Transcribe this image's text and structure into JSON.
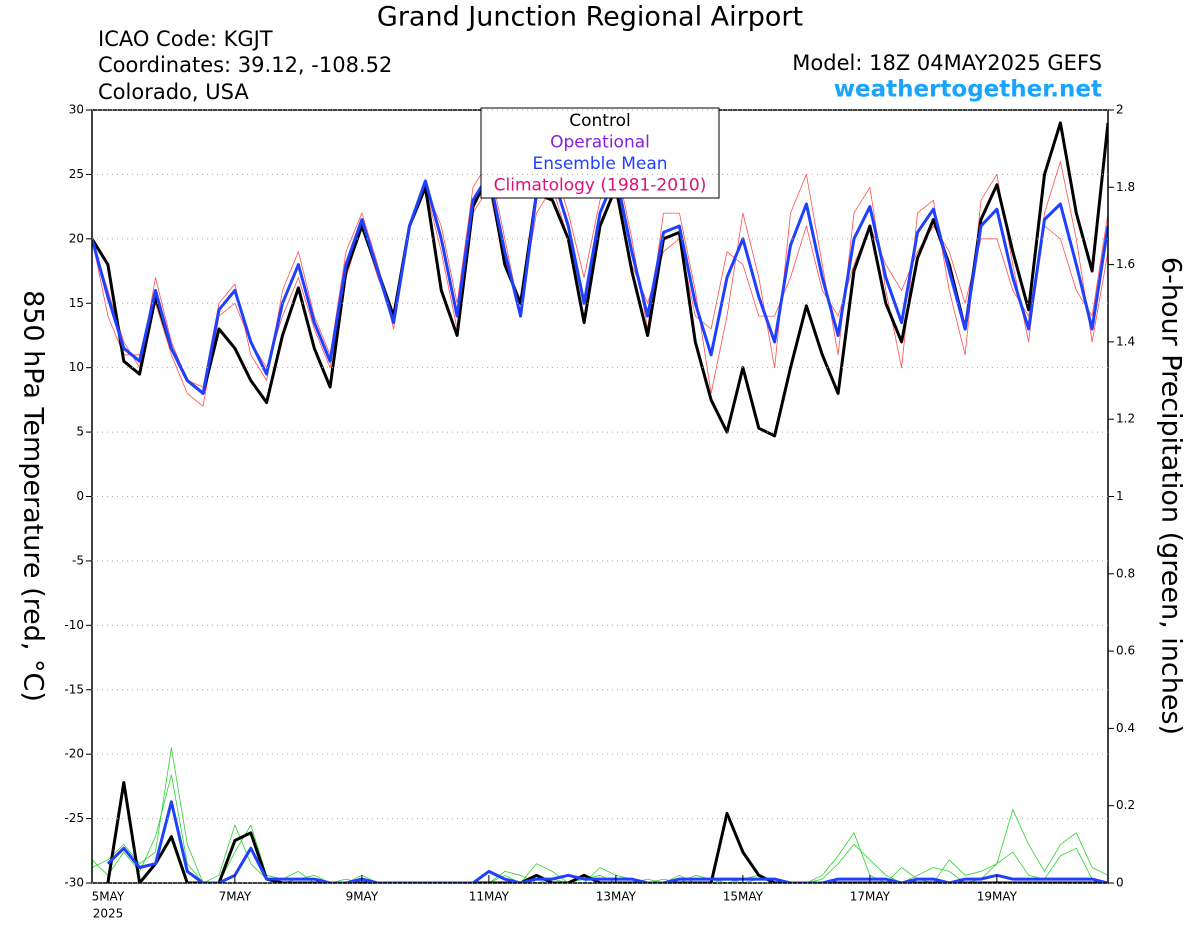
{
  "chart_data": {
    "type": "line",
    "title": "Grand Junction Regional Airport",
    "info": [
      "ICAO Code: KGJT",
      "Coordinates: 39.12, -108.52",
      "Colorado, USA"
    ],
    "model": "Model: 18Z 04MAY2025 GEFS",
    "site": "weathertogether.net",
    "ylabel": "850 hPa Temperature (red, °C)",
    "y2label": "6-hour Precipitation (green, inches)",
    "year": "2025",
    "legend": [
      {
        "name": "Control",
        "color": "#000000"
      },
      {
        "name": "Operational",
        "color": "#8a1ee0"
      },
      {
        "name": "Ensemble Mean",
        "color": "#2040ff"
      },
      {
        "name": "Climatology (1981-2010)",
        "color": "#e0107a"
      }
    ],
    "grid": true,
    "x": [
      0,
      6,
      12,
      18,
      24,
      30,
      36,
      42,
      48,
      54,
      60,
      66,
      72,
      78,
      84,
      90,
      96,
      102,
      108,
      114,
      120,
      126,
      132,
      138,
      144,
      150,
      156,
      162,
      168,
      174,
      180,
      186,
      192,
      198,
      204,
      210,
      216,
      222,
      228,
      234,
      240,
      246,
      252,
      258,
      264,
      270,
      276,
      282,
      288,
      294,
      300,
      306,
      312,
      318,
      324,
      330,
      336,
      342,
      348,
      354,
      360,
      366,
      372,
      378,
      384
    ],
    "xlim": [
      0,
      384
    ],
    "xticks": [
      {
        "value": 6,
        "label": "5MAY"
      },
      {
        "value": 54,
        "label": "7MAY"
      },
      {
        "value": 102,
        "label": "9MAY"
      },
      {
        "value": 150,
        "label": "11MAY"
      },
      {
        "value": 198,
        "label": "13MAY"
      },
      {
        "value": 246,
        "label": "15MAY"
      },
      {
        "value": 294,
        "label": "17MAY"
      },
      {
        "value": 342,
        "label": "19MAY"
      }
    ],
    "ylim": [
      -30,
      30
    ],
    "yticks": [
      -30,
      -25,
      -20,
      -15,
      -10,
      -5,
      0,
      5,
      10,
      15,
      20,
      25,
      30
    ],
    "y2lim": [
      0,
      2
    ],
    "y2ticks": [
      0,
      0.2,
      0.4,
      0.6,
      0.8,
      1,
      1.2,
      1.4,
      1.6,
      1.8,
      2
    ],
    "series": [
      {
        "color": "#ff5050",
        "width": 0.8,
        "values": [
          20,
          16,
          12,
          10,
          17,
          12,
          9,
          8.5,
          15,
          16.5,
          11,
          9,
          16,
          19,
          14,
          11,
          19,
          22,
          18,
          13,
          21,
          24,
          21,
          15,
          24,
          26,
          20,
          14,
          24,
          26,
          22,
          17,
          23,
          26,
          20,
          13,
          22,
          22,
          16,
          8,
          14,
          22,
          17,
          10,
          22,
          25,
          18,
          11,
          22,
          24,
          16,
          10,
          22,
          23,
          16,
          11,
          23,
          25,
          18,
          12,
          22,
          26,
          20,
          12,
          19
        ]
      },
      {
        "color": "#ff5050",
        "width": 0.8,
        "values": [
          20,
          14,
          11,
          11,
          15,
          11,
          8,
          7,
          14,
          15,
          12,
          10,
          14,
          17,
          13,
          10,
          17,
          21,
          17,
          14,
          21,
          24,
          19,
          13,
          22,
          24,
          18,
          15,
          22,
          24,
          20,
          14,
          21,
          24,
          18,
          15,
          19,
          20,
          14,
          13,
          19,
          18,
          14,
          14,
          17,
          21,
          16,
          14,
          18,
          21,
          18,
          16,
          19,
          21,
          19,
          15,
          20,
          20,
          16,
          14,
          21,
          20,
          16,
          14,
          22
        ]
      },
      {
        "color": "#30d030",
        "width": 0.8,
        "axis": "y2",
        "values": [
          0.04,
          0.06,
          0.1,
          0.05,
          0.08,
          0.35,
          0.1,
          0,
          0,
          0.08,
          0.15,
          0.02,
          0.01,
          0.03,
          0,
          0,
          0.01,
          0,
          0,
          0,
          0,
          0,
          0,
          0,
          0,
          0,
          0.03,
          0.02,
          0,
          0.01,
          0,
          0,
          0.04,
          0.02,
          0.01,
          0,
          0.01,
          0,
          0.02,
          0.01,
          0,
          0.01,
          0.02,
          0,
          0,
          0,
          0.01,
          0.05,
          0.1,
          0.06,
          0.02,
          0,
          0.02,
          0.04,
          0.03,
          0,
          0.01,
          0.05,
          0.19,
          0.1,
          0.03,
          0.1,
          0.13,
          0.04,
          0.02
        ]
      },
      {
        "color": "#30d030",
        "width": 0.8,
        "axis": "y2",
        "values": [
          0.06,
          0.02,
          0.08,
          0.03,
          0.12,
          0.28,
          0.05,
          0,
          0.02,
          0.15,
          0.05,
          0.01,
          0,
          0.01,
          0.02,
          0,
          0,
          0.02,
          0,
          0,
          0,
          0,
          0,
          0,
          0,
          0,
          0.02,
          0,
          0.05,
          0.03,
          0,
          0.01,
          0.02,
          0,
          0,
          0.01,
          0,
          0.02,
          0,
          0,
          0.01,
          0,
          0.01,
          0.01,
          0,
          0,
          0.02,
          0.07,
          0.13,
          0.02,
          0,
          0.04,
          0.01,
          0,
          0.06,
          0.02,
          0.03,
          0.05,
          0.08,
          0.02,
          0.01,
          0.07,
          0.09,
          0.01,
          0
        ]
      },
      {
        "color": "#000000",
        "width": 3,
        "axis": "y2",
        "values": [
          null,
          0,
          0.26,
          0,
          0.05,
          0.12,
          0,
          0,
          0,
          0.11,
          0.13,
          0.01,
          0,
          0,
          0,
          0,
          0,
          0,
          0,
          0,
          0,
          0,
          0,
          0,
          0,
          0,
          0,
          0,
          0.02,
          0,
          0,
          0.02,
          0,
          0,
          0,
          0,
          0,
          0,
          0,
          0,
          0.18,
          0.08,
          0.02,
          0,
          0,
          0,
          0,
          0,
          0,
          0,
          0,
          0,
          0,
          0,
          0,
          0,
          0,
          0,
          0,
          0,
          0,
          0,
          0,
          0,
          0
        ]
      },
      {
        "color": "#2040ff",
        "width": 3,
        "axis": "y2",
        "values": [
          null,
          0.05,
          0.09,
          0.04,
          0.05,
          0.21,
          0.03,
          0,
          0,
          0.02,
          0.09,
          0.01,
          0.01,
          0.01,
          0.01,
          0,
          0,
          0.01,
          0,
          0,
          0,
          0,
          0,
          0,
          0,
          0.03,
          0.01,
          0,
          0.01,
          0.01,
          0.02,
          0.01,
          0.01,
          0.01,
          0.01,
          0,
          0,
          0.01,
          0.01,
          0.01,
          0.01,
          0.01,
          0.01,
          0.01,
          0,
          0,
          0,
          0.01,
          0.01,
          0.01,
          0.01,
          0,
          0.01,
          0.01,
          0,
          0.01,
          0.01,
          0.02,
          0.01,
          0.01,
          0.01,
          0.01,
          0.01,
          0.01,
          0
        ]
      },
      {
        "color": "#000000",
        "width": 3,
        "values": [
          20,
          18,
          10.5,
          9.5,
          15.5,
          11.5,
          9,
          8,
          13,
          11.5,
          9,
          7.3,
          12.5,
          16.2,
          11.5,
          8.5,
          17.5,
          21,
          17.5,
          14,
          21,
          24,
          16,
          12.5,
          22.5,
          25,
          18,
          15,
          23.5,
          23,
          20,
          13.5,
          21,
          24,
          17.5,
          12.5,
          20,
          20.5,
          12,
          7.5,
          5,
          10,
          5.3,
          4.7,
          10,
          14.8,
          11,
          8,
          17.5,
          21,
          15,
          12,
          18.5,
          21.5,
          18,
          13,
          21.5,
          24.2,
          19,
          14.5,
          25,
          29,
          22,
          17.5,
          29
        ]
      },
      {
        "color": "#2040ff",
        "width": 3,
        "values": [
          20,
          15.5,
          11.5,
          10.5,
          16,
          11.5,
          9,
          8,
          14.5,
          16,
          12,
          9.5,
          15,
          18,
          13.5,
          10.5,
          18,
          21.5,
          17.5,
          13.5,
          21,
          24.5,
          20,
          14,
          23,
          25,
          19,
          14,
          23.5,
          25,
          21,
          15,
          22,
          25,
          19,
          14,
          20.5,
          21,
          15,
          11,
          17,
          20,
          15.5,
          12,
          19.5,
          22.7,
          17,
          12.5,
          20,
          22.5,
          17,
          13.5,
          20.5,
          22.3,
          17.5,
          13,
          21,
          22.3,
          17,
          13,
          21.5,
          22.7,
          18,
          13,
          21
        ]
      }
    ]
  }
}
